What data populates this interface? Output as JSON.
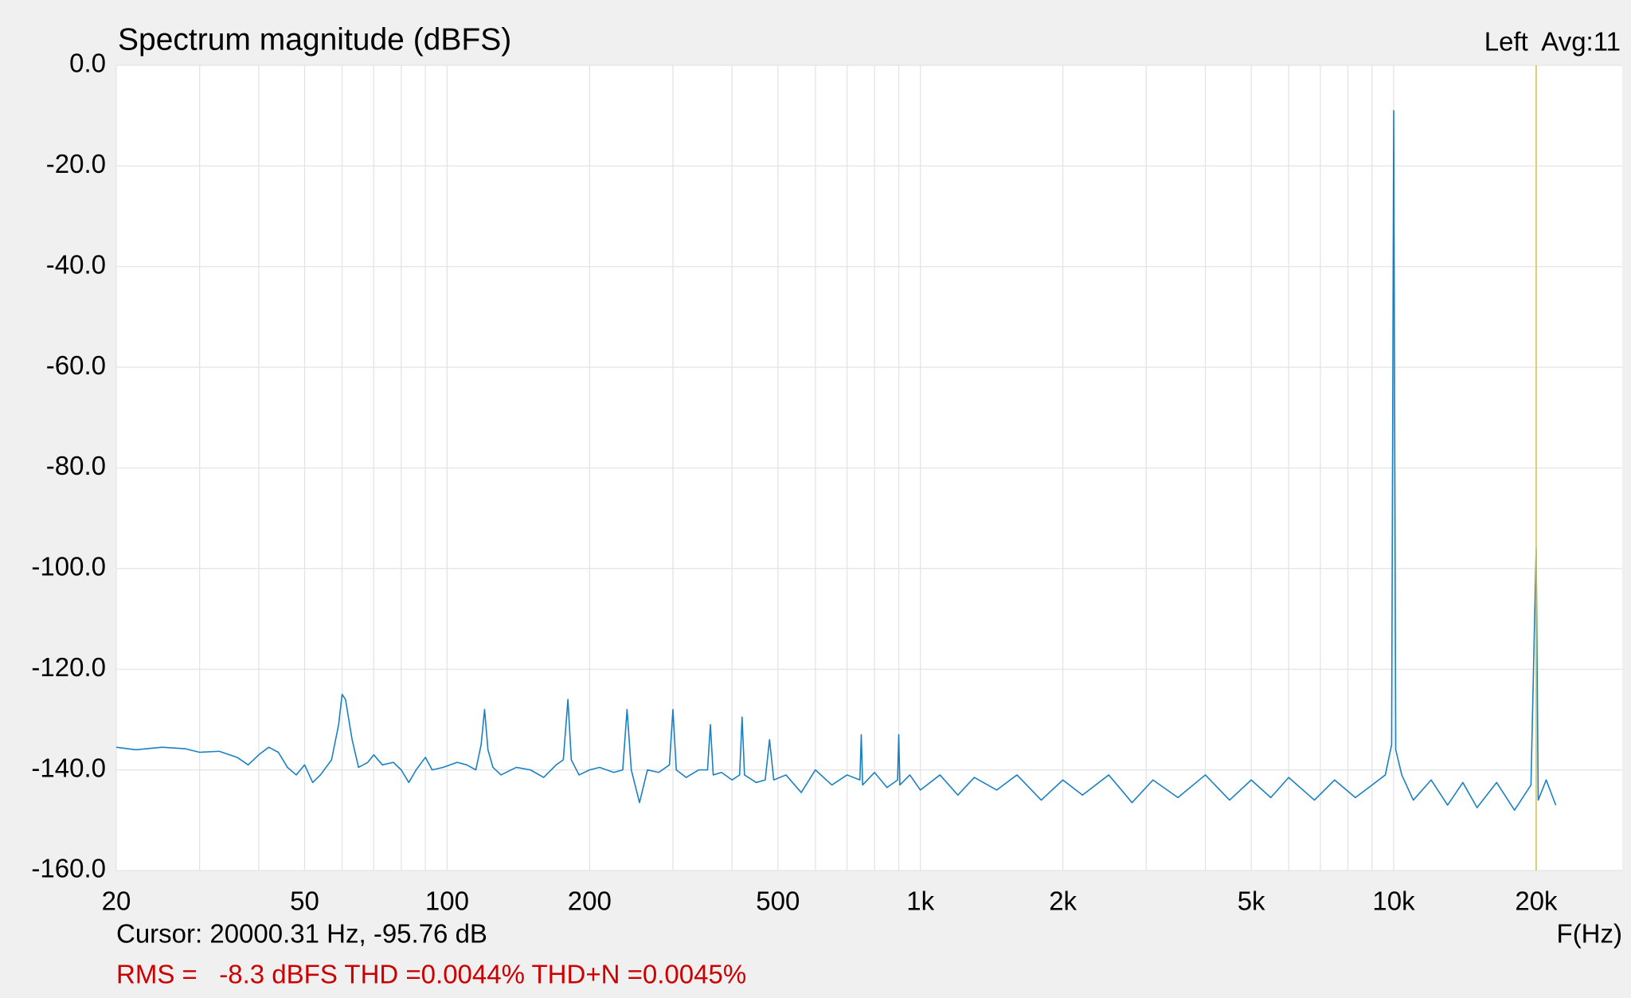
{
  "chart_data": {
    "type": "line",
    "title": "Spectrum magnitude (dBFS)",
    "channel_label": "Left  Avg:11",
    "x_label": "F(Hz)",
    "cursor_text": "Cursor: 20000.31 Hz, -95.76 dB",
    "stats_text": "RMS =   -8.3 dBFS THD =0.0044% THD+N =0.0045%",
    "cursor": {
      "x": 20000.31,
      "color": "#d4c45a"
    },
    "log_x": true,
    "grid": true,
    "xlim": [
      20,
      30400
    ],
    "ylim": [
      -160,
      0
    ],
    "xticks": [
      20,
      50,
      100,
      200,
      500,
      {
        "value": 1000,
        "label": "1k"
      },
      {
        "value": 2000,
        "label": "2k"
      },
      {
        "value": 5000,
        "label": "5k"
      },
      {
        "value": 10000,
        "label": "10k"
      },
      {
        "value": 20000,
        "label": "20k"
      }
    ],
    "minor_xticks": [
      30,
      40,
      60,
      70,
      80,
      90,
      300,
      400,
      600,
      700,
      800,
      900,
      3000,
      4000,
      6000,
      7000,
      8000,
      9000
    ],
    "yticks": [
      {
        "value": 0,
        "label": "0.0"
      },
      {
        "value": -20,
        "label": "-20.0"
      },
      {
        "value": -40,
        "label": "-40.0"
      },
      {
        "value": -60,
        "label": "-60.0"
      },
      {
        "value": -80,
        "label": "-80.0"
      },
      {
        "value": -100,
        "label": "-100.0"
      },
      {
        "value": -120,
        "label": "-120.0"
      },
      {
        "value": -140,
        "label": "-140.0"
      },
      {
        "value": -160,
        "label": "-160.0"
      }
    ],
    "x": [
      20,
      22,
      25,
      28,
      30,
      33,
      36,
      38,
      40,
      42,
      44,
      46,
      48,
      50,
      52,
      54,
      57,
      59,
      60,
      61,
      63,
      65,
      68,
      70,
      73,
      77,
      80,
      83,
      86,
      90,
      93,
      98,
      105,
      110,
      115,
      118,
      120,
      122,
      125,
      130,
      140,
      150,
      160,
      170,
      176,
      180,
      183,
      190,
      200,
      210,
      225,
      235,
      240,
      245,
      255,
      265,
      280,
      295,
      300,
      305,
      320,
      340,
      355,
      360,
      365,
      380,
      400,
      415,
      420,
      425,
      450,
      470,
      480,
      490,
      520,
      560,
      600,
      650,
      700,
      745,
      750,
      755,
      800,
      850,
      895,
      900,
      905,
      950,
      1000,
      1100,
      1200,
      1300,
      1450,
      1600,
      1800,
      2000,
      2200,
      2500,
      2800,
      3100,
      3500,
      4000,
      4500,
      5000,
      5500,
      6000,
      6800,
      7500,
      8300,
      9000,
      9600,
      9900,
      10000,
      10100,
      10400,
      11000,
      12000,
      13000,
      14000,
      15000,
      16500,
      18000,
      19500,
      20000,
      20200,
      21000,
      22000
    ],
    "series": [
      {
        "color": "#1a80c4",
        "values": [
          -135.5,
          -136,
          -135.5,
          -135.8,
          -136.5,
          -136.3,
          -137.5,
          -139,
          -137,
          -135.5,
          -136.5,
          -139.5,
          -141,
          -139,
          -142.5,
          -141,
          -138,
          -131,
          -125,
          -126,
          -134,
          -139.5,
          -138.5,
          -137,
          -139,
          -138.5,
          -140,
          -142.5,
          -140,
          -137.5,
          -140,
          -139.5,
          -138.5,
          -139,
          -140,
          -135,
          -128,
          -136,
          -139.5,
          -141,
          -139.5,
          -140,
          -141.5,
          -139,
          -138,
          -126,
          -138,
          -141,
          -140,
          -139.5,
          -140.5,
          -140,
          -128,
          -140,
          -146.5,
          -140,
          -140.5,
          -139,
          -128,
          -140,
          -141.5,
          -140,
          -140,
          -131,
          -141,
          -140.5,
          -142,
          -141,
          -129.5,
          -141,
          -142.5,
          -142,
          -134,
          -142,
          -141,
          -144.5,
          -140,
          -143,
          -141,
          -142,
          -133,
          -143,
          -140.5,
          -143.5,
          -142,
          -133,
          -143,
          -141,
          -144,
          -141,
          -145,
          -141.5,
          -144,
          -141,
          -146,
          -142,
          -145,
          -141,
          -146.5,
          -142,
          -145.5,
          -141,
          -146,
          -142,
          -145.5,
          -141.5,
          -146,
          -142,
          -145.5,
          -143,
          -141,
          -135,
          -9,
          -136,
          -141,
          -146,
          -142,
          -147,
          -142.5,
          -147.5,
          -142.5,
          -148,
          -143,
          -96,
          -146,
          -142,
          -147
        ]
      }
    ]
  }
}
